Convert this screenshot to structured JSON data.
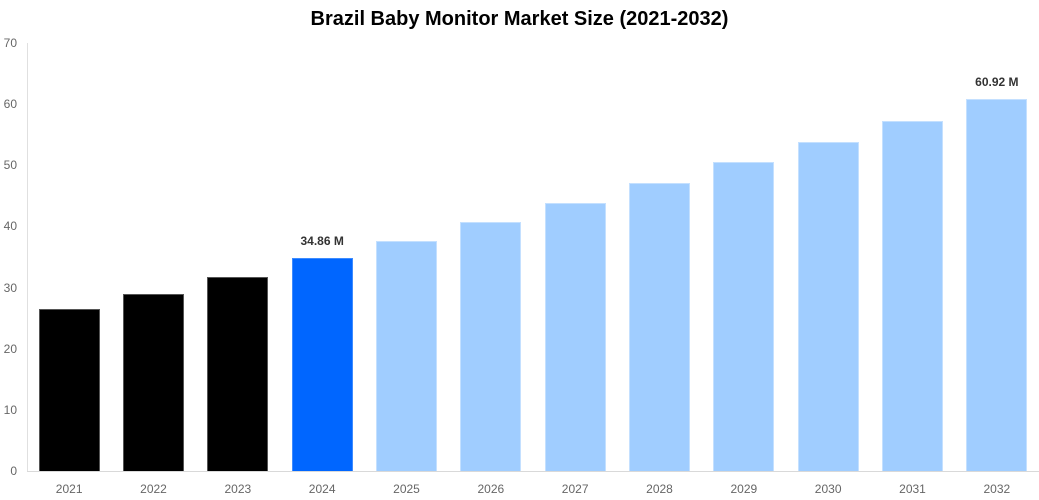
{
  "chart_data": {
    "type": "bar",
    "title": "Brazil Baby Monitor Market Size (2021-2032)",
    "xlabel": "",
    "ylabel": "",
    "ylim": [
      0,
      70
    ],
    "yticks": [
      0,
      10,
      20,
      30,
      40,
      50,
      60,
      70
    ],
    "grid": false,
    "legend": null,
    "categories": [
      "2021",
      "2022",
      "2023",
      "2024",
      "2025",
      "2026",
      "2027",
      "2028",
      "2029",
      "2030",
      "2031",
      "2032"
    ],
    "values": [
      26.5,
      28.95,
      31.7,
      34.86,
      37.6,
      40.7,
      43.8,
      47.1,
      50.5,
      53.8,
      57.2,
      60.92
    ],
    "bar_colors": [
      "#000000",
      "#000000",
      "#000000",
      "#0066ff",
      "#a0cdff",
      "#a0cdff",
      "#a0cdff",
      "#a0cdff",
      "#a0cdff",
      "#a0cdff",
      "#a0cdff",
      "#a0cdff"
    ],
    "data_labels": [
      {
        "category": "2024",
        "text": "34.86 M"
      },
      {
        "category": "2032",
        "text": "60.92 M"
      }
    ]
  },
  "colors": {
    "historical": "#000000",
    "base_year": "#0066ff",
    "forecast": "#a0cdff"
  }
}
